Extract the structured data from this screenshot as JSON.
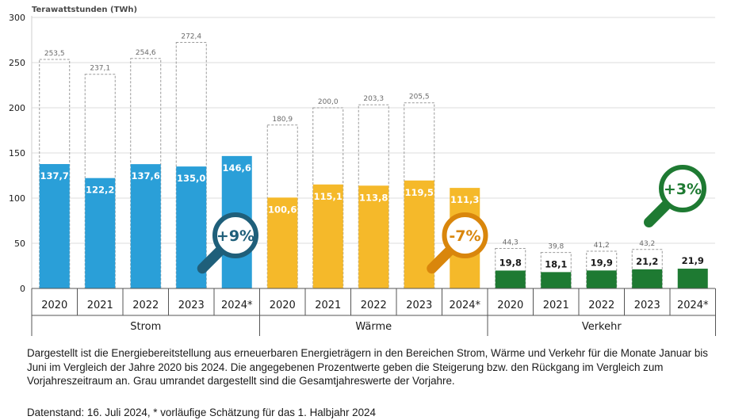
{
  "chart_data": {
    "type": "bar",
    "ylabel": "Terawattstunden (TWh)",
    "ylim": [
      0,
      300
    ],
    "yticks": [
      "0",
      "50",
      "100",
      "150",
      "200",
      "250",
      "300"
    ],
    "grid": true,
    "groups": [
      {
        "name": "Strom",
        "color": "#2a9fd8",
        "badge_color": "#1f5f7a",
        "badge": "+9%",
        "categories": [
          "2020",
          "2021",
          "2022",
          "2023",
          "2024*"
        ],
        "values": [
          137.7,
          122.2,
          137.6,
          135.0,
          146.6
        ],
        "value_labels": [
          "137,7",
          "122,2",
          "137,6",
          "135,0",
          "146,6"
        ],
        "annual_totals": [
          253.5,
          237.1,
          254.6,
          272.4
        ],
        "annual_labels": [
          "253,5",
          "237,1",
          "254,6",
          "272,4"
        ]
      },
      {
        "name": "Wärme",
        "color": "#f5b92a",
        "badge_color": "#d9860c",
        "badge": "-7%",
        "categories": [
          "2020",
          "2021",
          "2022",
          "2023",
          "2024*"
        ],
        "values": [
          100.6,
          115.1,
          113.8,
          119.5,
          111.3
        ],
        "value_labels": [
          "100,6",
          "115,1",
          "113,8",
          "119,5",
          "111,3"
        ],
        "annual_totals": [
          180.9,
          200.0,
          203.3,
          205.5
        ],
        "annual_labels": [
          "180,9",
          "200,0",
          "203,3",
          "205,5"
        ]
      },
      {
        "name": "Verkehr",
        "color": "#1e7a32",
        "badge_color": "#1e7a32",
        "badge": "+3%",
        "categories": [
          "2020",
          "2021",
          "2022",
          "2023",
          "2024*"
        ],
        "values": [
          19.8,
          18.1,
          19.9,
          21.2,
          21.9
        ],
        "value_labels": [
          "19,8",
          "18,1",
          "19,9",
          "21,2",
          "21,9"
        ],
        "annual_totals": [
          44.3,
          39.8,
          41.2,
          43.2
        ],
        "annual_labels": [
          "44,3",
          "39,8",
          "41,2",
          "43,2"
        ]
      }
    ]
  },
  "caption": "Dargestellt ist die Energiebereitstellung aus erneuerbaren Energieträgern in den Bereichen Strom, Wärme und Verkehr für die Monate Januar bis Juni im Vergleich der Jahre 2020 bis 2024. Die angegebenen Prozentwerte geben die Steigerung bzw. den Rückgang im Vergleich zum Vorjahreszeitraum an. Grau umrandet dargestellt sind die Gesamtjahreswerte der Vorjahre.",
  "footnote": "Datenstand: 16. Juli 2024, * vorläufige Schätzung für das 1. Halbjahr 2024"
}
